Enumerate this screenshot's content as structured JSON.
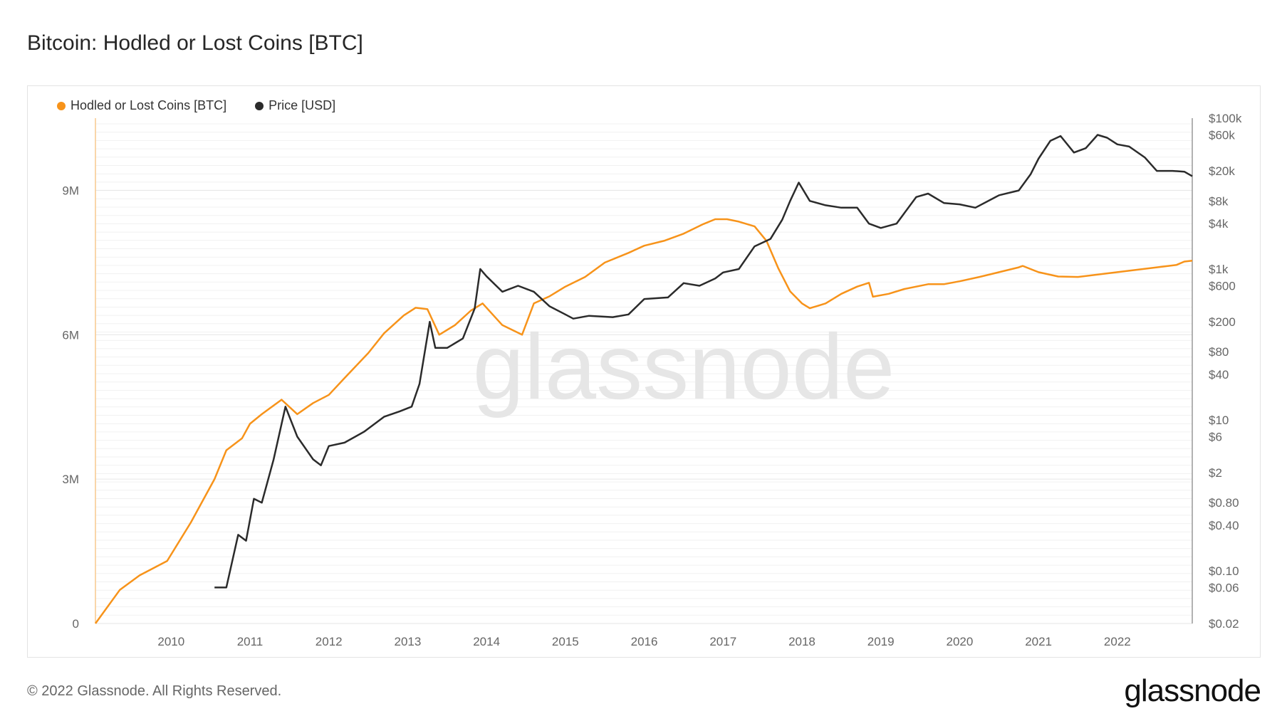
{
  "title": "Bitcoin: Hodled or Lost Coins [BTC]",
  "footer": "© 2022 Glassnode. All Rights Reserved.",
  "logo": "glassnode",
  "watermark": "glassnode",
  "colors": {
    "hodl": "#f7931a",
    "price": "#2b2b2b",
    "grid": "#e6e6e6",
    "axis": "#666666"
  },
  "legend": [
    {
      "label": "Hodled or Lost Coins [BTC]",
      "color": "#f7931a"
    },
    {
      "label": "Price [USD]",
      "color": "#2b2b2b"
    }
  ],
  "chart_data": {
    "type": "line",
    "x_axis": {
      "ticks": [
        "2010",
        "2011",
        "2012",
        "2013",
        "2014",
        "2015",
        "2016",
        "2017",
        "2018",
        "2019",
        "2020",
        "2021",
        "2022"
      ],
      "range": [
        2009.04,
        2022.95
      ]
    },
    "y_left": {
      "ticks": [
        {
          "value": 0,
          "label": "0"
        },
        {
          "value": 3000000,
          "label": "3M"
        },
        {
          "value": 6000000,
          "label": "6M"
        },
        {
          "value": 9000000,
          "label": "9M"
        }
      ],
      "range": [
        0,
        10500000
      ]
    },
    "y_right": {
      "scale": "log",
      "range": [
        0.02,
        100000
      ],
      "ticks": [
        {
          "value": 100000,
          "label": "$100k"
        },
        {
          "value": 60000,
          "label": "$60k"
        },
        {
          "value": 20000,
          "label": "$20k"
        },
        {
          "value": 8000,
          "label": "$8k"
        },
        {
          "value": 4000,
          "label": "$4k"
        },
        {
          "value": 1000,
          "label": "$1k"
        },
        {
          "value": 600,
          "label": "$600"
        },
        {
          "value": 200,
          "label": "$200"
        },
        {
          "value": 80,
          "label": "$80"
        },
        {
          "value": 40,
          "label": "$40"
        },
        {
          "value": 10,
          "label": "$10"
        },
        {
          "value": 6,
          "label": "$6"
        },
        {
          "value": 2,
          "label": "$2"
        },
        {
          "value": 0.8,
          "label": "$0.80"
        },
        {
          "value": 0.4,
          "label": "$0.40"
        },
        {
          "value": 0.1,
          "label": "$0.10"
        },
        {
          "value": 0.06,
          "label": "$0.06"
        },
        {
          "value": 0.02,
          "label": "$0.02"
        }
      ]
    },
    "grid": true,
    "legend_position": "top-left",
    "series": [
      {
        "name": "Hodled or Lost Coins [BTC]",
        "axis": "left",
        "x": [
          2009.04,
          2009.35,
          2009.6,
          2009.95,
          2010.25,
          2010.55,
          2010.7,
          2010.9,
          2011.0,
          2011.15,
          2011.4,
          2011.6,
          2011.8,
          2012.0,
          2012.2,
          2012.5,
          2012.7,
          2012.95,
          2013.1,
          2013.25,
          2013.4,
          2013.6,
          2013.8,
          2013.95,
          2014.2,
          2014.45,
          2014.6,
          2014.8,
          2015.0,
          2015.25,
          2015.5,
          2015.8,
          2016.0,
          2016.25,
          2016.5,
          2016.75,
          2016.9,
          2017.05,
          2017.2,
          2017.4,
          2017.55,
          2017.7,
          2017.85,
          2018.0,
          2018.1,
          2018.3,
          2018.5,
          2018.7,
          2018.85,
          2018.9,
          2019.1,
          2019.3,
          2019.6,
          2019.8,
          2020.0,
          2020.25,
          2020.5,
          2020.75,
          2020.8,
          2021.0,
          2021.25,
          2021.5,
          2021.75,
          2022.0,
          2022.25,
          2022.5,
          2022.75,
          2022.85,
          2022.95
        ],
        "values": [
          0,
          700000,
          1000000,
          1300000,
          2100000,
          3000000,
          3600000,
          3850000,
          4150000,
          4350000,
          4650000,
          4350000,
          4580000,
          4750000,
          5100000,
          5620000,
          6030000,
          6400000,
          6560000,
          6530000,
          6000000,
          6200000,
          6500000,
          6650000,
          6200000,
          6000000,
          6650000,
          6800000,
          7000000,
          7200000,
          7500000,
          7700000,
          7850000,
          7950000,
          8100000,
          8300000,
          8400000,
          8400000,
          8350000,
          8250000,
          7950000,
          7380000,
          6900000,
          6650000,
          6550000,
          6650000,
          6850000,
          7000000,
          7080000,
          6790000,
          6850000,
          6950000,
          7050000,
          7050000,
          7110000,
          7200000,
          7300000,
          7400000,
          7430000,
          7300000,
          7210000,
          7200000,
          7250000,
          7300000,
          7350000,
          7400000,
          7450000,
          7520000,
          7540000
        ]
      },
      {
        "name": "Price [USD]",
        "axis": "right",
        "x": [
          2010.55,
          2010.7,
          2010.85,
          2010.95,
          2011.05,
          2011.15,
          2011.3,
          2011.45,
          2011.6,
          2011.8,
          2011.9,
          2012.0,
          2012.2,
          2012.45,
          2012.7,
          2012.9,
          2013.05,
          2013.15,
          2013.28,
          2013.35,
          2013.5,
          2013.7,
          2013.85,
          2013.92,
          2014.0,
          2014.2,
          2014.4,
          2014.6,
          2014.8,
          2015.0,
          2015.1,
          2015.3,
          2015.6,
          2015.8,
          2016.0,
          2016.3,
          2016.5,
          2016.7,
          2016.9,
          2017.0,
          2017.2,
          2017.4,
          2017.6,
          2017.75,
          2017.85,
          2017.96,
          2018.1,
          2018.3,
          2018.5,
          2018.7,
          2018.85,
          2019.0,
          2019.2,
          2019.45,
          2019.6,
          2019.8,
          2020.0,
          2020.2,
          2020.5,
          2020.75,
          2020.9,
          2021.0,
          2021.15,
          2021.28,
          2021.45,
          2021.6,
          2021.75,
          2021.87,
          2022.0,
          2022.15,
          2022.35,
          2022.5,
          2022.7,
          2022.85,
          2022.95
        ],
        "values": [
          0.06,
          0.06,
          0.3,
          0.25,
          0.9,
          0.8,
          3.0,
          15,
          6,
          3,
          2.5,
          4.5,
          5,
          7,
          11,
          13,
          15,
          30,
          200,
          90,
          90,
          120,
          300,
          1000,
          800,
          500,
          600,
          500,
          320,
          250,
          220,
          240,
          230,
          250,
          400,
          420,
          650,
          600,
          750,
          900,
          1000,
          2000,
          2500,
          4500,
          8000,
          14000,
          8000,
          7000,
          6500,
          6500,
          4000,
          3500,
          4000,
          9000,
          10000,
          7500,
          7200,
          6500,
          9500,
          11000,
          18000,
          29000,
          50000,
          58000,
          35000,
          40000,
          60000,
          55000,
          45000,
          42000,
          30000,
          20000,
          20000,
          19500,
          17000
        ]
      }
    ]
  }
}
